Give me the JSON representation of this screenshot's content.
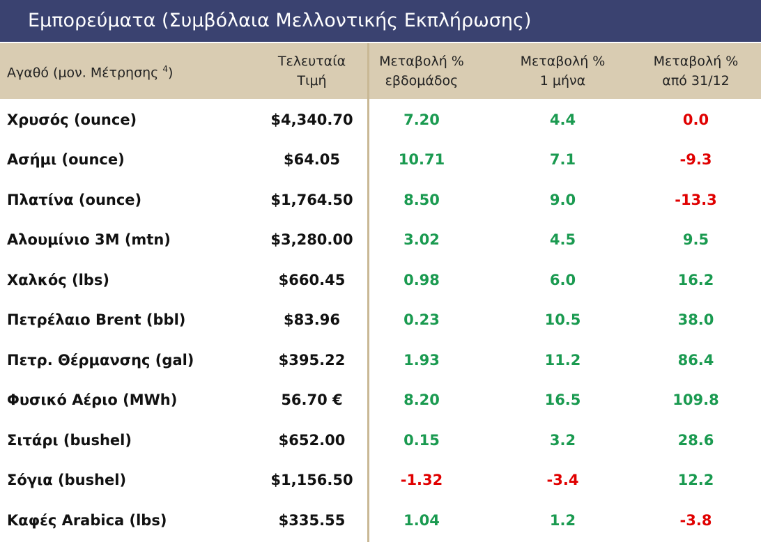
{
  "title": "Εμπορεύματα (Συμβόλαια Μελλοντικής Εκπλήρωσης)",
  "header": {
    "commodity": {
      "text": "Αγαθό (μον. Μέτρησης",
      "note": "4",
      "close": ")"
    },
    "price": [
      "Τελευταία",
      "Τιμή"
    ],
    "changes": [
      [
        "Μεταβολή %",
        "εβδομάδος"
      ],
      [
        "Μεταβολή %",
        "1 μήνα"
      ],
      [
        "Μεταβολή %",
        "από 31/12"
      ]
    ]
  },
  "rows": [
    {
      "commodity": "Χρυσός (ounce)",
      "price": "$4,340.70",
      "changes": [
        {
          "text": "7.20",
          "color": "#1a9a50"
        },
        {
          "text": "4.4",
          "color": "#1a9a50"
        },
        {
          "text": "0.0",
          "color": "#e00000"
        }
      ]
    },
    {
      "commodity": "Ασήμι (ounce)",
      "price": "$64.05",
      "changes": [
        {
          "text": "10.71",
          "color": "#1a9a50"
        },
        {
          "text": "7.1",
          "color": "#1a9a50"
        },
        {
          "text": "-9.3",
          "color": "#e00000"
        }
      ]
    },
    {
      "commodity": "Πλατίνα (ounce)",
      "price": "$1,764.50",
      "changes": [
        {
          "text": "8.50",
          "color": "#1a9a50"
        },
        {
          "text": "9.0",
          "color": "#1a9a50"
        },
        {
          "text": "-13.3",
          "color": "#e00000"
        }
      ]
    },
    {
      "commodity": "Αλουμίνιο 3M (mtn)",
      "price": "$3,280.00",
      "changes": [
        {
          "text": "3.02",
          "color": "#1a9a50"
        },
        {
          "text": "4.5",
          "color": "#1a9a50"
        },
        {
          "text": "9.5",
          "color": "#1a9a50"
        }
      ]
    },
    {
      "commodity": "Χαλκός (lbs)",
      "price": "$660.45",
      "changes": [
        {
          "text": "0.98",
          "color": "#1a9a50"
        },
        {
          "text": "6.0",
          "color": "#1a9a50"
        },
        {
          "text": "16.2",
          "color": "#1a9a50"
        }
      ]
    },
    {
      "commodity": "Πετρέλαιο Brent (bbl)",
      "price": "$83.96",
      "changes": [
        {
          "text": "0.23",
          "color": "#1a9a50"
        },
        {
          "text": "10.5",
          "color": "#1a9a50"
        },
        {
          "text": "38.0",
          "color": "#1a9a50"
        }
      ]
    },
    {
      "commodity": "Πετρ. Θέρμανσης (gal)",
      "price": "$395.22",
      "changes": [
        {
          "text": "1.93",
          "color": "#1a9a50"
        },
        {
          "text": "11.2",
          "color": "#1a9a50"
        },
        {
          "text": "86.4",
          "color": "#1a9a50"
        }
      ]
    },
    {
      "commodity": "Φυσικό Αέριο (MWh)",
      "price": "56.70 €",
      "changes": [
        {
          "text": "8.20",
          "color": "#1a9a50"
        },
        {
          "text": "16.5",
          "color": "#1a9a50"
        },
        {
          "text": "109.8",
          "color": "#1a9a50"
        }
      ]
    },
    {
      "commodity": "Σιτάρι (bushel)",
      "price": "$652.00",
      "changes": [
        {
          "text": "0.15",
          "color": "#1a9a50"
        },
        {
          "text": "3.2",
          "color": "#1a9a50"
        },
        {
          "text": "28.6",
          "color": "#1a9a50"
        }
      ]
    },
    {
      "commodity": "Σόγια (bushel)",
      "price": "$1,156.50",
      "changes": [
        {
          "text": "-1.32",
          "color": "#e00000"
        },
        {
          "text": "-3.4",
          "color": "#e00000"
        },
        {
          "text": "12.2",
          "color": "#1a9a50"
        }
      ]
    },
    {
      "commodity": "Καφές Arabica (lbs)",
      "price": "$335.55",
      "changes": [
        {
          "text": "1.04",
          "color": "#1a9a50"
        },
        {
          "text": "1.2",
          "color": "#1a9a50"
        },
        {
          "text": "-3.8",
          "color": "#e00000"
        }
      ]
    }
  ]
}
